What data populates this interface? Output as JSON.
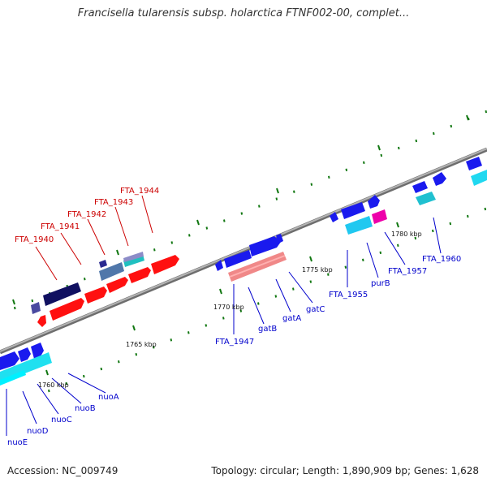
{
  "title": "Francisella tularensis subsp. holarctica FTNF002-00, complet...",
  "accession": "Accession: NC_009749",
  "summary": "Topology: circular; Length: 1,890,909 bp; Genes: 1,628",
  "colors": {
    "red_genes": "#ff0000",
    "red_labels": "#cc0000",
    "blue_genes": "#1a1aee",
    "blue_labels": "#0000cc",
    "cyan_genes": "#00e0f0",
    "navy_genes": "#101060",
    "pink_genes": "#f08080",
    "magenta_genes": "#ee00aa",
    "backbone": "#888888",
    "ticks": "#117711"
  },
  "kbp_labels": [
    "1760 kbp",
    "1765 kbp",
    "1770 kbp",
    "1775 kbp",
    "1780 kbp"
  ],
  "gene_labels": {
    "red": [
      "FTA_1940",
      "FTA_1941",
      "FTA_1942",
      "FTA_1943",
      "FTA_1944"
    ],
    "blue": [
      "FTA_1947",
      "gatB",
      "gatA",
      "gatC",
      "FTA_1955",
      "purB",
      "FTA_1957",
      "FTA_1960",
      "nuoE",
      "nuoD",
      "nuoC",
      "nuoB",
      "nuoA"
    ]
  }
}
